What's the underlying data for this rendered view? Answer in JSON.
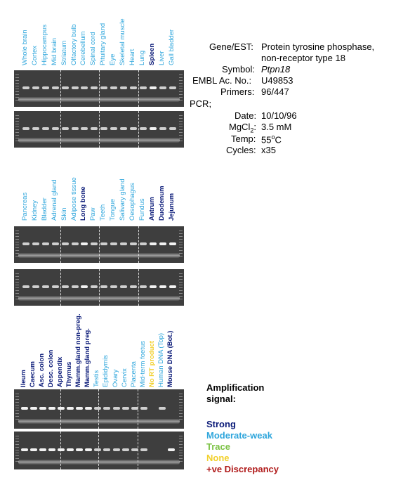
{
  "info": {
    "gene_label": "Gene/EST:",
    "gene_value_1": "Protein tyrosine phosphase,",
    "gene_value_2": "non-receptor type 18",
    "symbol_label": "Symbol:",
    "symbol_value": "Ptpn18",
    "embl_label": "EMBL Ac. No.:",
    "embl_value": "U49853",
    "primers_label": "Primers:",
    "primers_value": "96/447",
    "pcr_label": "PCR;",
    "date_label": "Date:",
    "date_value": "10/10/96",
    "mgcl_label_pre": "MgCl",
    "mgcl_label_sub": "2",
    "mgcl_label_post": ":",
    "mgcl_value": "3.5 mM",
    "temp_label": "Temp:",
    "temp_value_pre": "55",
    "temp_value_sup": "o",
    "temp_value_post": "C",
    "cycles_label": "Cycles:",
    "cycles_value": "x35"
  },
  "legend": {
    "title_1": "Amplification",
    "title_2": "signal:",
    "strong": "Strong",
    "moderate": "Moderate-weak",
    "trace": "Trace",
    "none": "None",
    "discrepancy": "+ve Discrepancy"
  },
  "colors": {
    "strong": "#0a1a78",
    "moderate": "#2fa6dc",
    "trace": "#7ac142",
    "none": "#f2d02c",
    "discrepancy": "#b01a1a"
  },
  "panels": [
    {
      "lanes": [
        {
          "label": "Whole brain",
          "signal": "moderate"
        },
        {
          "label": "Cortex",
          "signal": "moderate"
        },
        {
          "label": "Hippocampus",
          "signal": "moderate"
        },
        {
          "label": "Mid brain",
          "signal": "moderate"
        },
        {
          "label": "Striatum",
          "signal": "moderate"
        },
        {
          "label": "Olfactory bulb",
          "signal": "moderate"
        },
        {
          "label": "Cerebellum",
          "signal": "moderate"
        },
        {
          "label": "Spinal cord",
          "signal": "moderate"
        },
        {
          "label": "Pituitary gland",
          "signal": "moderate"
        },
        {
          "label": "Eye",
          "signal": "moderate"
        },
        {
          "label": "Skeletal muscle",
          "signal": "moderate"
        },
        {
          "label": "Heart",
          "signal": "moderate"
        },
        {
          "label": "Lung",
          "signal": "moderate"
        },
        {
          "label": "Spleen",
          "signal": "strong"
        },
        {
          "label": "Liver",
          "signal": "moderate"
        },
        {
          "label": "Gall bladder",
          "signal": "moderate"
        }
      ]
    },
    {
      "lanes": [
        {
          "label": "Pancreas",
          "signal": "moderate"
        },
        {
          "label": "Kidney",
          "signal": "moderate"
        },
        {
          "label": "Bladder",
          "signal": "moderate"
        },
        {
          "label": "Adrenal gland",
          "signal": "moderate"
        },
        {
          "label": "Skin",
          "signal": "moderate"
        },
        {
          "label": "Adipose tissue",
          "signal": "moderate"
        },
        {
          "label": "Long bone",
          "signal": "strong"
        },
        {
          "label": "Paw",
          "signal": "moderate"
        },
        {
          "label": "Teeth",
          "signal": "moderate"
        },
        {
          "label": "Tongue",
          "signal": "moderate"
        },
        {
          "label": "Salivary gland",
          "signal": "moderate"
        },
        {
          "label": "Oesophagus",
          "signal": "moderate"
        },
        {
          "label": "Fundus",
          "signal": "moderate"
        },
        {
          "label": "Antrum",
          "signal": "strong"
        },
        {
          "label": "Duodenum",
          "signal": "strong"
        },
        {
          "label": "Jejunum",
          "signal": "strong"
        }
      ]
    },
    {
      "lanes": [
        {
          "label": "Ileum",
          "signal": "strong"
        },
        {
          "label": "Caecum",
          "signal": "strong"
        },
        {
          "label": "Asc. colon",
          "signal": "strong"
        },
        {
          "label": "Desc. colon",
          "signal": "strong"
        },
        {
          "label": "Appendix",
          "signal": "strong"
        },
        {
          "label": "Thymus",
          "signal": "strong"
        },
        {
          "label": "Mamm.gland non-preg.",
          "signal": "strong"
        },
        {
          "label": "Mamm.gland preg.",
          "signal": "strong"
        },
        {
          "label": "Testis",
          "signal": "moderate"
        },
        {
          "label": "Epididymis",
          "signal": "moderate"
        },
        {
          "label": "Ovary",
          "signal": "moderate"
        },
        {
          "label": "Cervix",
          "signal": "moderate"
        },
        {
          "label": "Placenta",
          "signal": "moderate"
        },
        {
          "label": "Mid-term foetus",
          "signal": "moderate"
        },
        {
          "label": "No RT product",
          "signal": "none"
        },
        {
          "label": "Human DNA (Top)",
          "signal": "moderate"
        },
        {
          "label": "Mouse DNA (Bot.)",
          "signal": "strong"
        }
      ]
    }
  ]
}
